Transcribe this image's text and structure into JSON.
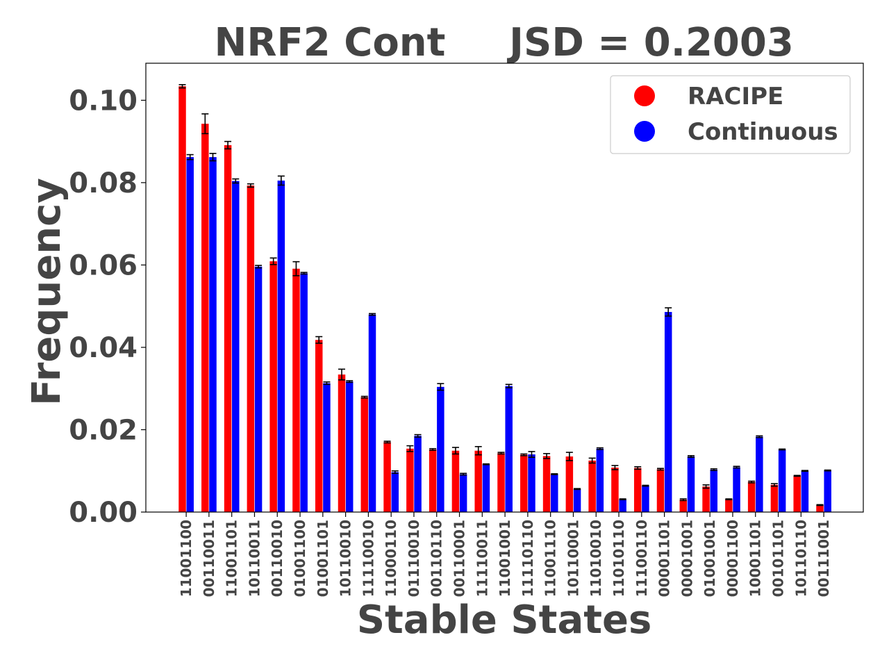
{
  "chart_data": {
    "type": "bar",
    "title_left": "NRF2 Cont",
    "title_right": "JSD = 0.2003",
    "xlabel": "Stable States",
    "ylabel": "Frequency",
    "ylim": [
      0,
      0.109
    ],
    "yticks": [
      "0.00",
      "0.02",
      "0.04",
      "0.06",
      "0.08",
      "0.10"
    ],
    "ytick_values": [
      0,
      0.02,
      0.04,
      0.06,
      0.08,
      0.1
    ],
    "legend_position": "top-right",
    "categories": [
      "11001100",
      "00110011",
      "11001101",
      "10110011",
      "00110010",
      "01001100",
      "01001101",
      "10110010",
      "11110010",
      "11000110",
      "01110010",
      "00110110",
      "00110001",
      "11110011",
      "11001001",
      "11110110",
      "11001110",
      "10110001",
      "11010010",
      "11010110",
      "11100110",
      "00001101",
      "00001001",
      "01001001",
      "00001100",
      "10001101",
      "00101101",
      "10110110",
      "00111001"
    ],
    "series": [
      {
        "name": "RACIPE",
        "color": "#ff0000",
        "values": [
          0.1034,
          0.0943,
          0.0891,
          0.0793,
          0.0609,
          0.0591,
          0.0418,
          0.0334,
          0.0279,
          0.017,
          0.0154,
          0.0152,
          0.0149,
          0.0149,
          0.0143,
          0.0139,
          0.0136,
          0.0135,
          0.0125,
          0.0108,
          0.0107,
          0.0104,
          0.003,
          0.0062,
          0.0031,
          0.0073,
          0.0066,
          0.0088,
          0.0017
        ],
        "errors": [
          0.0004,
          0.0024,
          0.0009,
          0.0004,
          0.0008,
          0.0017,
          0.0008,
          0.0013,
          0.0002,
          0.0002,
          0.0007,
          0.0002,
          0.0008,
          0.001,
          0.0002,
          0.0002,
          0.0006,
          0.001,
          0.0006,
          0.0005,
          0.0003,
          0.0002,
          0.0002,
          0.0004,
          0.0001,
          0.0002,
          0.0003,
          0.0001,
          0.0001
        ]
      },
      {
        "name": "Continuous",
        "color": "#0000ff",
        "values": [
          0.0862,
          0.0862,
          0.0804,
          0.0596,
          0.0805,
          0.058,
          0.0313,
          0.0317,
          0.048,
          0.0097,
          0.0185,
          0.0304,
          0.0092,
          0.0116,
          0.0306,
          0.014,
          0.0092,
          0.0056,
          0.0154,
          0.0031,
          0.0064,
          0.0486,
          0.0135,
          0.0103,
          0.0109,
          0.0183,
          0.0152,
          0.01,
          0.0101
        ],
        "errors": [
          0.0006,
          0.0009,
          0.0005,
          0.0003,
          0.0011,
          0.0002,
          0.0003,
          0.0002,
          0.0002,
          0.0003,
          0.0003,
          0.0008,
          0.0002,
          0.0001,
          0.0004,
          0.0007,
          0.0001,
          0.0001,
          0.0002,
          0.0001,
          0.0001,
          0.001,
          0.0002,
          0.0002,
          0.0002,
          0.0002,
          0.0001,
          0.0001,
          0.0001
        ]
      }
    ]
  }
}
